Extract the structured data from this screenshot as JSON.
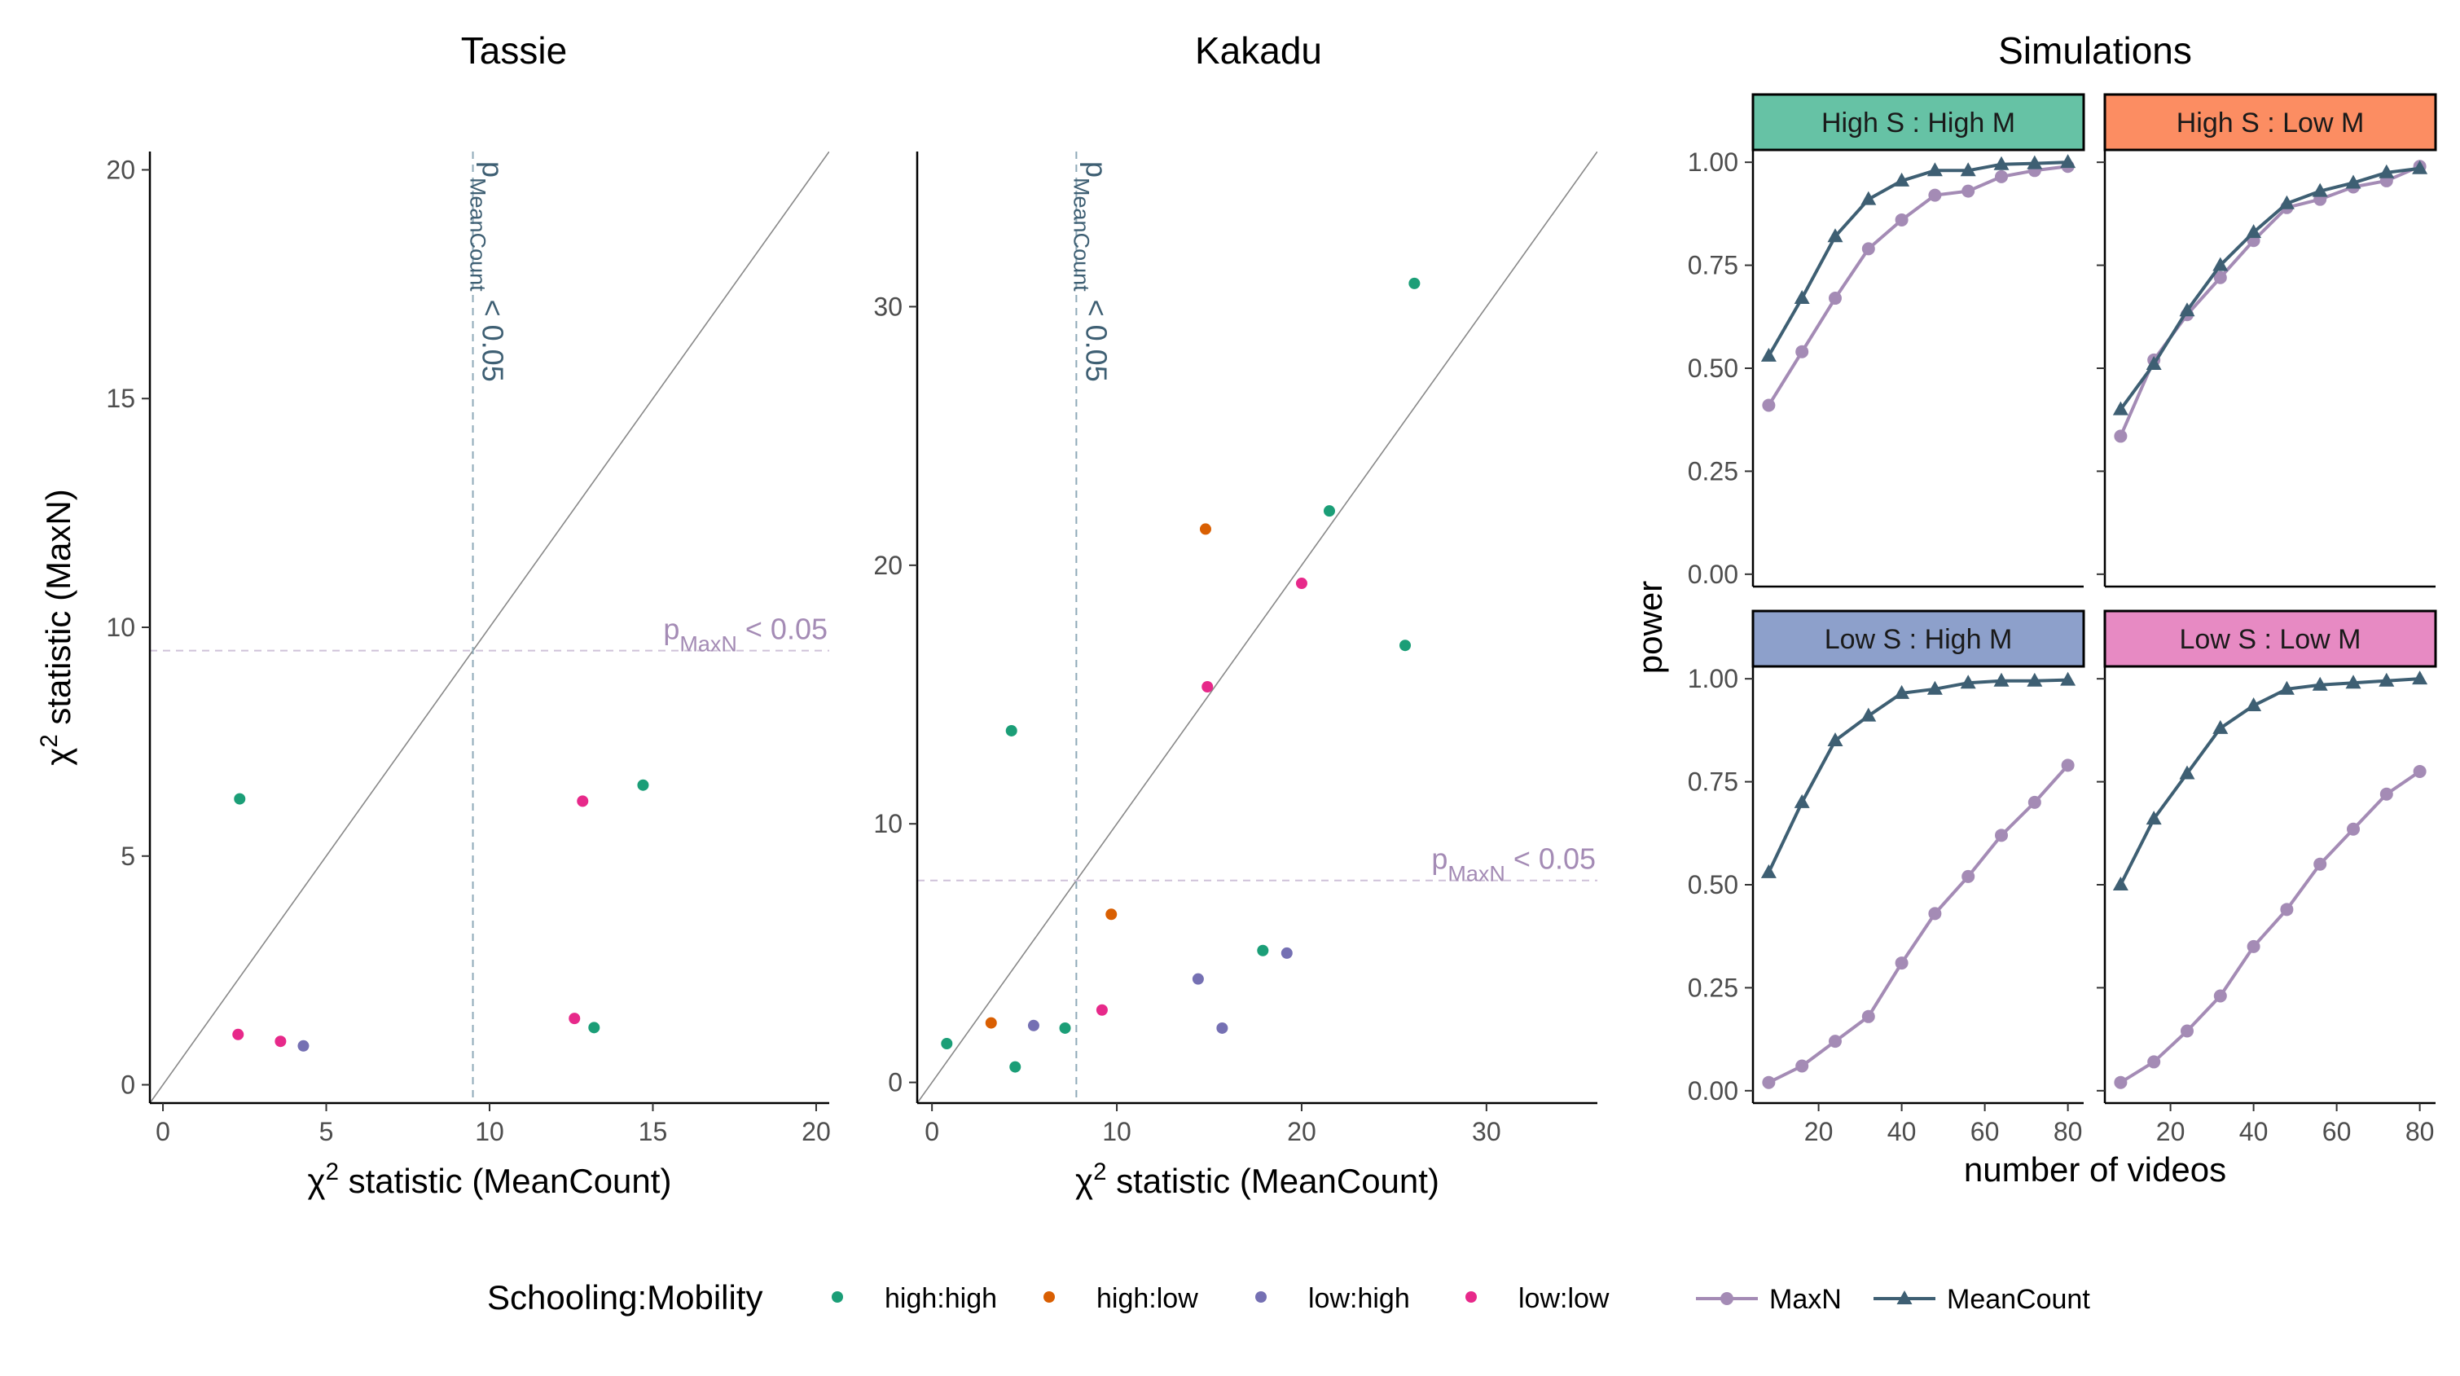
{
  "colors": {
    "high:high": "#1B9E77",
    "high:low": "#D95F02",
    "low:high": "#7570B3",
    "low:low": "#E7298A",
    "MaxN": "#A48BB5",
    "MeanCount": "#3E5F73",
    "identity_line": "#888888",
    "axis": "#000000",
    "tick_label": "#4D4D4D"
  },
  "chart_data": [
    {
      "type": "scatter",
      "title": "Tassie",
      "xlabel": "χ² statistic  (MeanCount)",
      "ylabel": "χ² statistic  (MaxN)",
      "xlim": [
        -0.4,
        20.4
      ],
      "ylim": [
        -0.4,
        20.4
      ],
      "xticks": [
        0,
        5,
        10,
        15,
        20
      ],
      "yticks": [
        0,
        5,
        10,
        15,
        20
      ],
      "identity_line": true,
      "threshold_x": 9.49,
      "threshold_y": 9.49,
      "threshold_x_label": {
        "base": "p",
        "sub": "MeanCount",
        "rest": " < 0.05"
      },
      "threshold_y_label": {
        "base": "p",
        "sub": "MaxN",
        "rest": " < 0.05"
      },
      "points": [
        {
          "group": "high:high",
          "x": 2.35,
          "y": 6.25
        },
        {
          "group": "high:high",
          "x": 14.7,
          "y": 6.55
        },
        {
          "group": "high:high",
          "x": 13.2,
          "y": 1.25
        },
        {
          "group": "low:low",
          "x": 12.85,
          "y": 6.2
        },
        {
          "group": "low:low",
          "x": 12.6,
          "y": 1.45
        },
        {
          "group": "low:low",
          "x": 2.3,
          "y": 1.1
        },
        {
          "group": "low:low",
          "x": 3.6,
          "y": 0.95
        },
        {
          "group": "low:high",
          "x": 4.3,
          "y": 0.85
        }
      ]
    },
    {
      "type": "scatter",
      "title": "Kakadu",
      "xlabel": "χ² statistic  (MeanCount)",
      "ylabel": "",
      "xlim": [
        -0.8,
        36
      ],
      "ylim": [
        -0.8,
        36
      ],
      "xticks": [
        0,
        10,
        20,
        30
      ],
      "yticks": [
        0,
        10,
        20,
        30
      ],
      "identity_line": true,
      "threshold_x": 7.81,
      "threshold_y": 7.81,
      "threshold_x_label": {
        "base": "p",
        "sub": "MeanCount",
        "rest": " < 0.05"
      },
      "threshold_y_label": {
        "base": "p",
        "sub": "MaxN",
        "rest": " < 0.05"
      },
      "points": [
        {
          "group": "high:high",
          "x": 26.1,
          "y": 30.9
        },
        {
          "group": "high:high",
          "x": 21.5,
          "y": 22.1
        },
        {
          "group": "high:high",
          "x": 25.6,
          "y": 16.9
        },
        {
          "group": "high:high",
          "x": 4.3,
          "y": 13.6
        },
        {
          "group": "high:high",
          "x": 17.9,
          "y": 5.1
        },
        {
          "group": "high:high",
          "x": 0.8,
          "y": 1.5
        },
        {
          "group": "high:high",
          "x": 7.2,
          "y": 2.1
        },
        {
          "group": "high:high",
          "x": 4.5,
          "y": 0.6
        },
        {
          "group": "high:low",
          "x": 14.8,
          "y": 21.4
        },
        {
          "group": "high:low",
          "x": 9.7,
          "y": 6.5
        },
        {
          "group": "high:low",
          "x": 3.2,
          "y": 2.3
        },
        {
          "group": "low:low",
          "x": 20.0,
          "y": 19.3
        },
        {
          "group": "low:low",
          "x": 14.9,
          "y": 15.3
        },
        {
          "group": "low:low",
          "x": 9.2,
          "y": 2.8
        },
        {
          "group": "low:high",
          "x": 14.4,
          "y": 4.0
        },
        {
          "group": "low:high",
          "x": 19.2,
          "y": 5.0
        },
        {
          "group": "low:high",
          "x": 5.5,
          "y": 2.2
        },
        {
          "group": "low:high",
          "x": 15.7,
          "y": 2.1
        }
      ]
    },
    {
      "type": "line",
      "title": "Simulations",
      "xlabel": "number of videos",
      "ylabel": "power",
      "xlim": [
        4.2,
        83.8
      ],
      "ylim": [
        -0.03,
        1.03
      ],
      "xticks": [
        20,
        40,
        60,
        80
      ],
      "yticks": [
        0.0,
        0.25,
        0.5,
        0.75,
        1.0
      ],
      "ytick_labels": [
        "0.00",
        "0.25",
        "0.50",
        "0.75",
        "1.00"
      ],
      "x": [
        8,
        16,
        24,
        32,
        40,
        48,
        56,
        64,
        72,
        80
      ],
      "facets": [
        {
          "label": "High S : High M",
          "strip_color": "#66C2A5",
          "series": [
            {
              "name": "MaxN",
              "values": [
                0.41,
                0.54,
                0.67,
                0.79,
                0.86,
                0.92,
                0.93,
                0.965,
                0.98,
                0.99
              ]
            },
            {
              "name": "MeanCount",
              "values": [
                0.53,
                0.67,
                0.82,
                0.91,
                0.955,
                0.98,
                0.98,
                0.995,
                0.997,
                1.0
              ]
            }
          ]
        },
        {
          "label": "High S : Low M",
          "strip_color": "#FC8D62",
          "series": [
            {
              "name": "MaxN",
              "values": [
                0.335,
                0.52,
                0.63,
                0.72,
                0.81,
                0.89,
                0.91,
                0.94,
                0.955,
                0.99
              ]
            },
            {
              "name": "MeanCount",
              "values": [
                0.4,
                0.51,
                0.64,
                0.75,
                0.83,
                0.9,
                0.93,
                0.95,
                0.975,
                0.985
              ]
            }
          ]
        },
        {
          "label": "Low S : High M",
          "strip_color": "#8DA0CB",
          "series": [
            {
              "name": "MaxN",
              "values": [
                0.02,
                0.06,
                0.12,
                0.18,
                0.31,
                0.43,
                0.52,
                0.62,
                0.7,
                0.79
              ]
            },
            {
              "name": "MeanCount",
              "values": [
                0.53,
                0.7,
                0.85,
                0.91,
                0.965,
                0.975,
                0.99,
                0.995,
                0.995,
                0.997
              ]
            }
          ]
        },
        {
          "label": "Low S : Low M",
          "strip_color": "#E78AC3",
          "series": [
            {
              "name": "MaxN",
              "values": [
                0.02,
                0.07,
                0.145,
                0.23,
                0.35,
                0.44,
                0.55,
                0.635,
                0.72,
                0.775
              ]
            },
            {
              "name": "MeanCount",
              "values": [
                0.5,
                0.66,
                0.77,
                0.88,
                0.935,
                0.975,
                0.985,
                0.99,
                0.995,
                1.0
              ]
            }
          ]
        }
      ]
    }
  ],
  "legend": {
    "title": "Schooling:Mobility",
    "groups": [
      "high:high",
      "high:low",
      "low:high",
      "low:low"
    ],
    "series": [
      "MaxN",
      "MeanCount"
    ]
  }
}
